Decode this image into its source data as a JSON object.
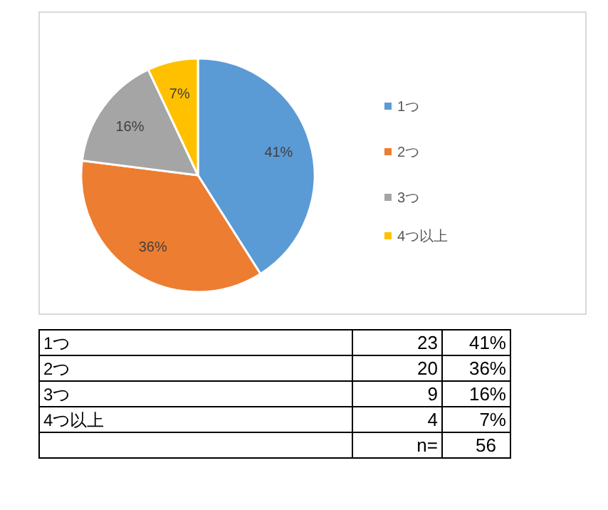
{
  "chart_data": {
    "type": "pie",
    "categories": [
      "1つ",
      "2つ",
      "3つ",
      "4つ以上"
    ],
    "values": [
      41,
      36,
      16,
      7
    ],
    "value_labels": [
      "41%",
      "36%",
      "16%",
      "7%"
    ],
    "colors": [
      "#5b9bd5",
      "#ed7d31",
      "#a5a5a5",
      "#ffc000"
    ],
    "legend": "right",
    "annotations": [
      "23",
      "20",
      "9",
      "4",
      "n=",
      "56"
    ]
  }
}
